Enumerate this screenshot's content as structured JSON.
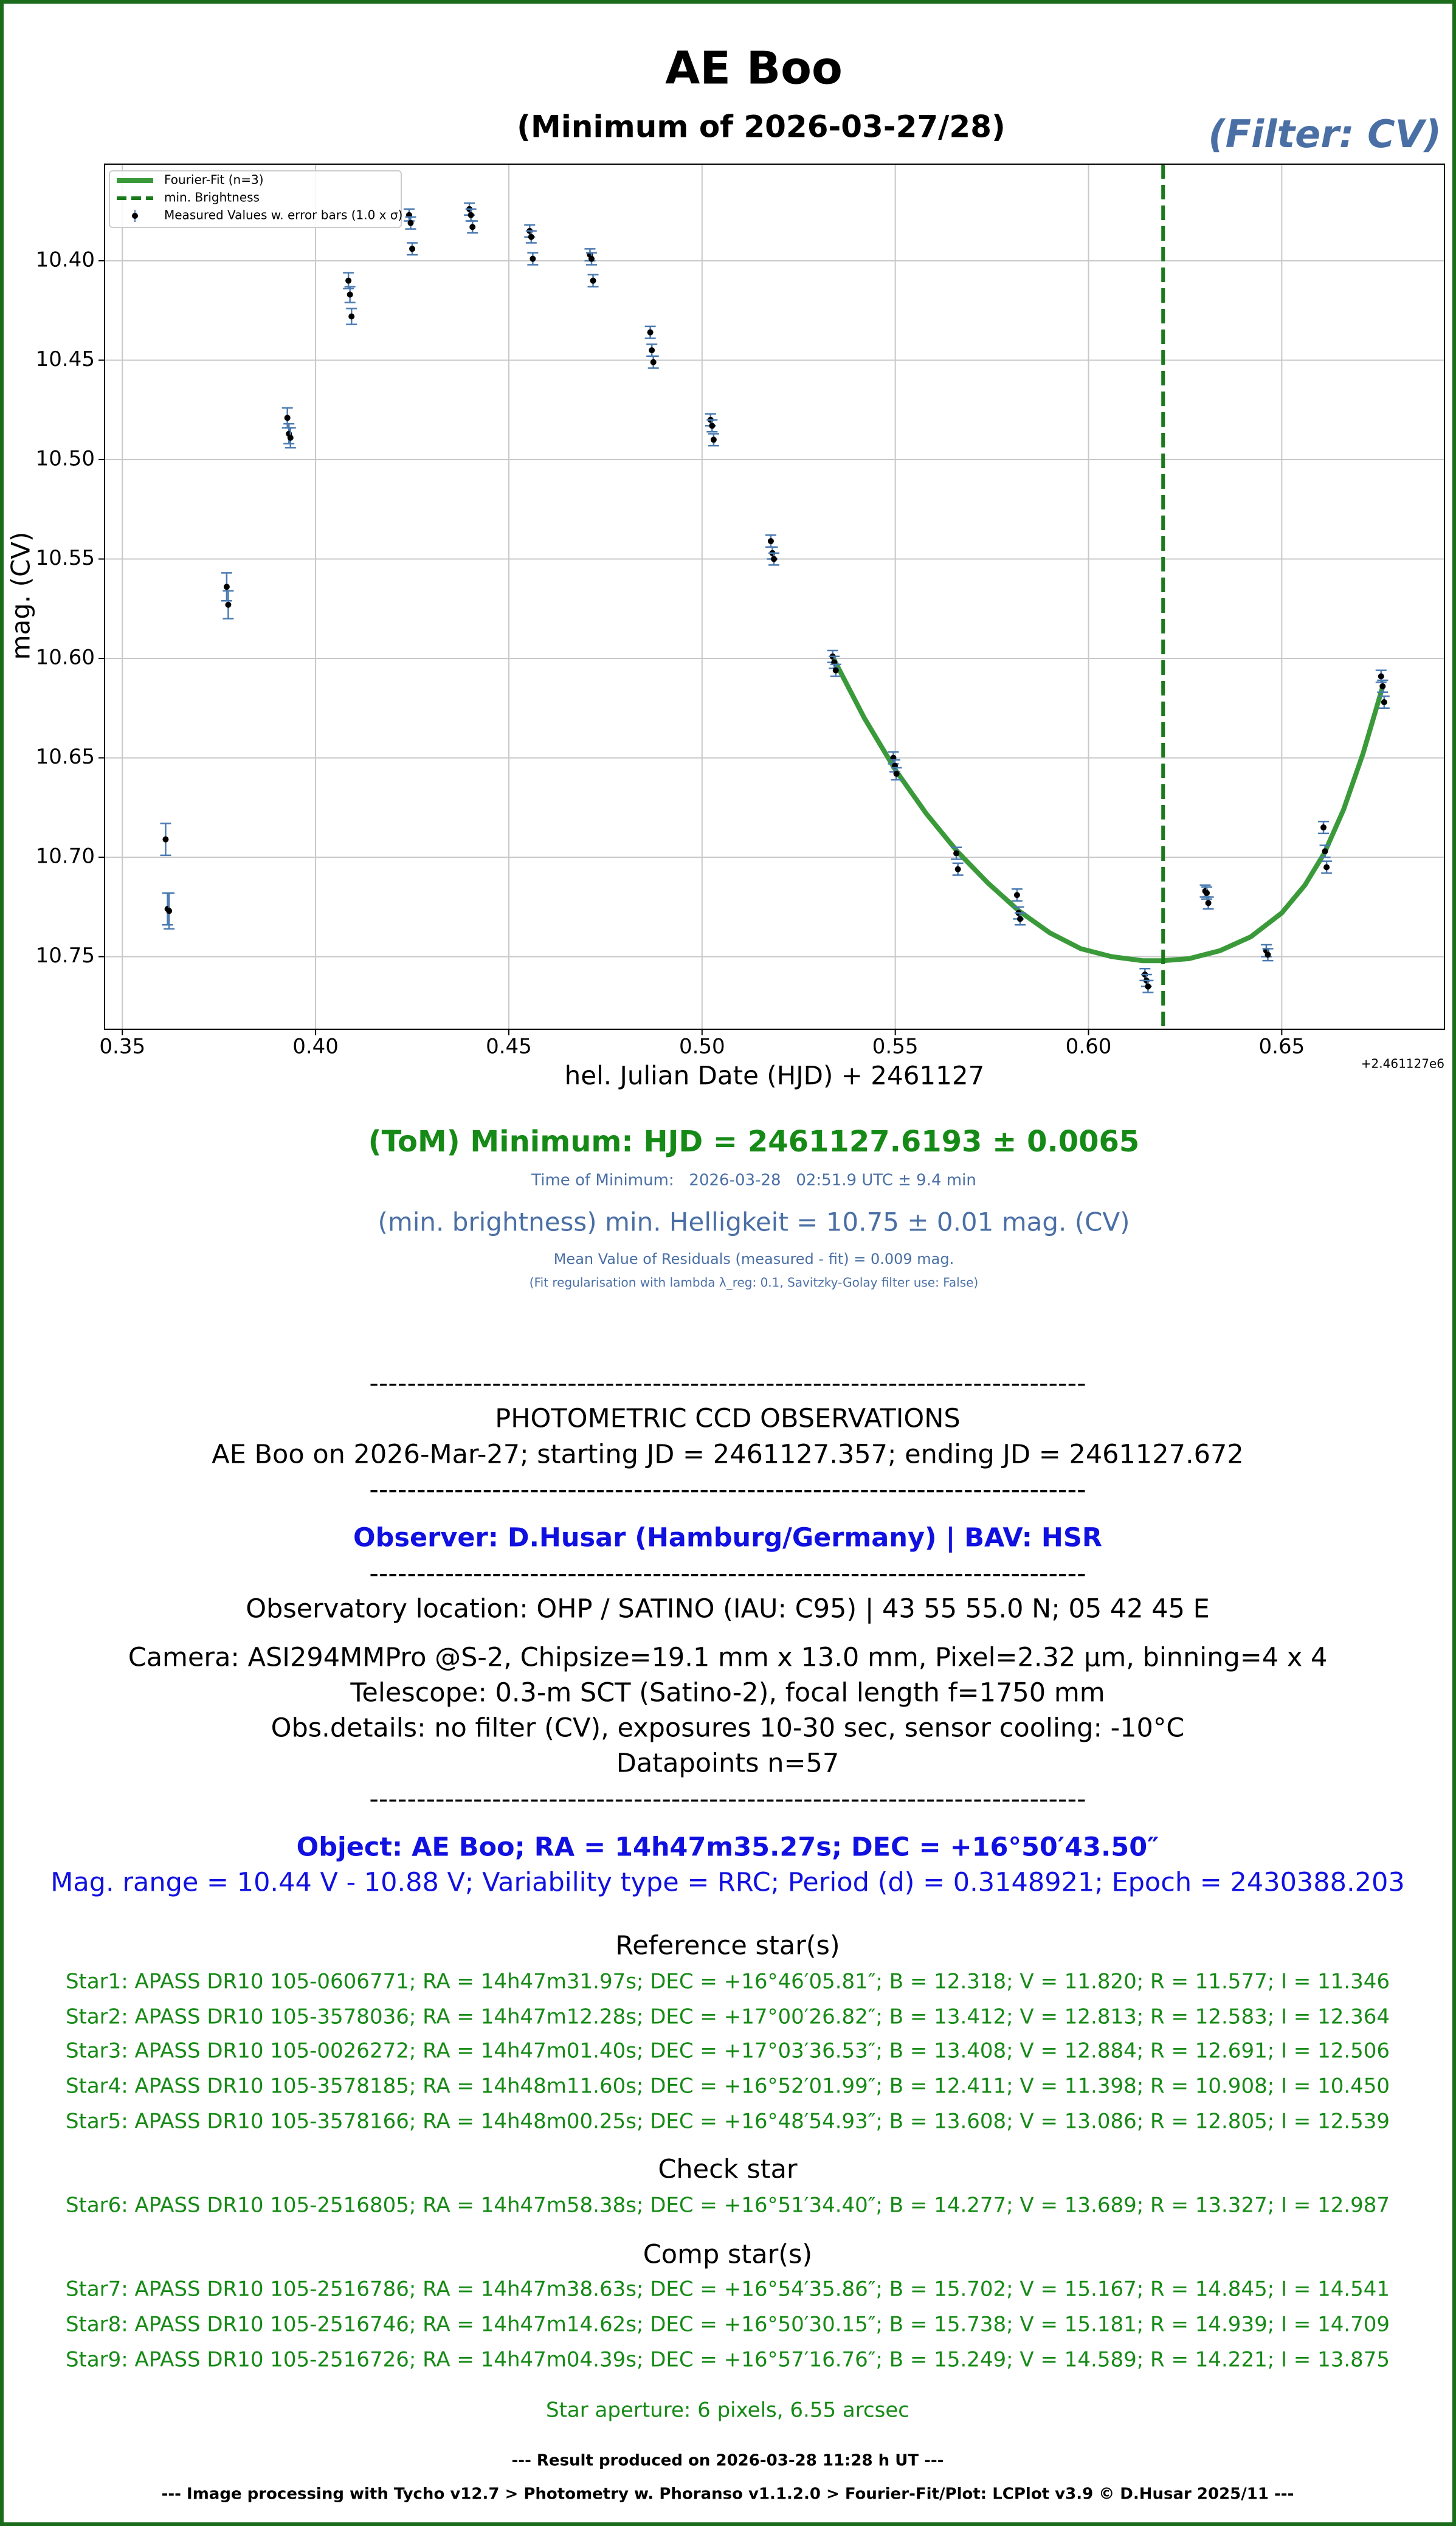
{
  "chart_data": {
    "type": "scatter",
    "title": "AE Boo",
    "subtitle": "(Minimum of 2026-03-27/28)",
    "filter_label": "(Filter: CV)",
    "xlabel": "hel. Julian Date (HJD) + 2461127",
    "ylabel": "mag. (CV)",
    "x_offset_label": "+2.461127e6",
    "xlim": [
      0.3454,
      0.6921
    ],
    "ylim": [
      10.7865,
      10.3514
    ],
    "xticks": [
      0.35,
      {
        "value": 0.4,
        "label": "0.40"
      },
      0.45,
      {
        "value": 0.5,
        "label": "0.50"
      },
      0.55,
      {
        "value": 0.6,
        "label": "0.60"
      },
      0.65
    ],
    "yticks": [
      {
        "value": 10.4,
        "label": "10.40"
      },
      10.45,
      {
        "value": 10.5,
        "label": "10.50"
      },
      10.55,
      {
        "value": 10.6,
        "label": "10.60"
      },
      10.65,
      {
        "value": 10.7,
        "label": "10.70"
      },
      10.75
    ],
    "grid": true,
    "legend": "upper left",
    "series": [
      {
        "name": "Fourier-Fit (n=3)",
        "type": "line",
        "color": "#3a9a3a",
        "x": [
          0.534,
          0.542,
          0.55,
          0.558,
          0.566,
          0.574,
          0.582,
          0.59,
          0.598,
          0.606,
          0.614,
          0.6193,
          0.626,
          0.634,
          0.642,
          0.65,
          0.656,
          0.661,
          0.666,
          0.671,
          0.676
        ],
        "values": [
          10.6,
          10.63,
          10.656,
          10.678,
          10.697,
          10.713,
          10.727,
          10.738,
          10.746,
          10.75,
          10.752,
          10.752,
          10.751,
          10.747,
          10.74,
          10.728,
          10.714,
          10.698,
          10.676,
          10.648,
          10.615
        ]
      },
      {
        "name": "Measured Values w. error bars (1.0 x σ)",
        "type": "errorbar",
        "color": "#000000",
        "error_color": "#4a7ab0",
        "x": [
          0.3612,
          0.3617,
          0.3621,
          0.377,
          0.3774,
          0.3927,
          0.3931,
          0.3935,
          0.4085,
          0.4089,
          0.4093,
          0.4242,
          0.4246,
          0.425,
          0.4398,
          0.4402,
          0.4406,
          0.4554,
          0.4558,
          0.4562,
          0.471,
          0.4714,
          0.4718,
          0.4866,
          0.487,
          0.4874,
          0.5022,
          0.5026,
          0.503,
          0.5178,
          0.5182,
          0.5186,
          0.5338,
          0.5342,
          0.5346,
          0.5495,
          0.5499,
          0.5503,
          0.5658,
          0.5662,
          0.5815,
          0.5819,
          0.5823,
          0.6146,
          0.615,
          0.6154,
          0.6302,
          0.6306,
          0.631,
          0.646,
          0.6464,
          0.6608,
          0.6612,
          0.6616,
          0.6757,
          0.6761,
          0.6765
        ],
        "values": [
          10.691,
          10.726,
          10.727,
          10.564,
          10.573,
          10.479,
          10.487,
          10.489,
          10.41,
          10.417,
          10.428,
          10.377,
          10.381,
          10.394,
          10.374,
          10.377,
          10.383,
          10.385,
          10.388,
          10.399,
          10.397,
          10.399,
          10.41,
          10.436,
          10.445,
          10.451,
          10.48,
          10.483,
          10.49,
          10.541,
          10.547,
          10.55,
          10.599,
          10.602,
          10.606,
          10.65,
          10.654,
          10.658,
          10.698,
          10.706,
          10.719,
          10.728,
          10.731,
          10.759,
          10.762,
          10.765,
          10.717,
          10.718,
          10.723,
          10.747,
          10.749,
          10.685,
          10.697,
          10.705,
          10.609,
          10.614,
          10.622
        ],
        "errors": [
          0.008,
          0.008,
          0.009,
          0.007,
          0.007,
          0.005,
          0.005,
          0.005,
          0.004,
          0.004,
          0.004,
          0.003,
          0.003,
          0.003,
          0.003,
          0.003,
          0.003,
          0.003,
          0.003,
          0.003,
          0.003,
          0.003,
          0.003,
          0.003,
          0.003,
          0.003,
          0.003,
          0.003,
          0.003,
          0.003,
          0.003,
          0.003,
          0.003,
          0.003,
          0.003,
          0.003,
          0.003,
          0.003,
          0.003,
          0.003,
          0.003,
          0.003,
          0.003,
          0.003,
          0.003,
          0.003,
          0.003,
          0.003,
          0.003,
          0.003,
          0.003,
          0.003,
          0.003,
          0.003,
          0.003,
          0.003,
          0.003
        ]
      }
    ],
    "vline": {
      "name": "min. Brightness",
      "x": 0.6193,
      "color": "#1a7a1a"
    }
  },
  "results": {
    "minimum": "(ToM) Minimum: HJD = 2461127.6193 ± 0.0065",
    "time_of_minimum": "Time of Minimum:   2026-03-28   02:51.9 UTC ± 9.4 min",
    "min_brightness": "(min. brightness) min. Helligkeit = 10.75 ± 0.01 mag. (CV)",
    "residuals": "Mean Value of Residuals (measured - fit) = 0.009 mag.",
    "fit_note": "(Fit regularisation with lambda λ_reg: 0.1, Savitzky-Golay filter use: False)"
  },
  "report": {
    "separator": "----------------------------------------------------------------------------",
    "heading": "PHOTOMETRIC CCD OBSERVATIONS",
    "run": "AE Boo on 2026-Mar-27; starting JD = 2461127.357; ending JD = 2461127.672",
    "observer": "Observer: D.Husar (Hamburg/Germany) | BAV: HSR",
    "location": "Observatory location: OHP / SATINO (IAU: C95) | 43 55 55.0 N; 05 42 45 E",
    "camera": "Camera: ASI294MMPro @S-2, Chipsize=19.1 mm x 13.0 mm, Pixel=2.32 µm, binning=4 x 4",
    "telescope": "Telescope: 0.3-m SCT (Satino-2), focal length f=1750 mm",
    "details": "Obs.details: no filter (CV), exposures 10-30 sec, sensor cooling: -10°C",
    "datapoints": "Datapoints n=57",
    "object": "Object: AE Boo; RA = 14h47m35.27s; DEC = +16°50′43.50″",
    "object_info": "Mag. range = 10.44 V - 10.88 V; Variability type = RRC; Period (d) = 0.3148921; Epoch = 2430388.203",
    "reference_heading": "Reference star(s)",
    "reference_stars": [
      "Star1: APASS DR10 105-0606771; RA = 14h47m31.97s; DEC = +16°46′05.81″; B = 12.318; V = 11.820; R = 11.577; I = 11.346",
      "Star2: APASS DR10 105-3578036; RA = 14h47m12.28s; DEC = +17°00′26.82″; B = 13.412; V = 12.813; R = 12.583; I = 12.364",
      "Star3: APASS DR10 105-0026272; RA = 14h47m01.40s; DEC = +17°03′36.53″; B = 13.408; V = 12.884; R = 12.691; I = 12.506",
      "Star4: APASS DR10 105-3578185; RA = 14h48m11.60s; DEC = +16°52′01.99″; B = 12.411; V = 11.398; R = 10.908; I = 10.450",
      "Star5: APASS DR10 105-3578166; RA = 14h48m00.25s; DEC = +16°48′54.93″; B = 13.608; V = 13.086; R = 12.805; I = 12.539"
    ],
    "check_heading": "Check star",
    "check_stars": [
      "Star6: APASS DR10 105-2516805; RA = 14h47m58.38s; DEC = +16°51′34.40″; B = 14.277; V = 13.689; R = 13.327; I = 12.987"
    ],
    "comp_heading": "Comp star(s)",
    "comp_stars": [
      "Star7: APASS DR10 105-2516786; RA = 14h47m38.63s; DEC = +16°54′35.86″; B = 15.702; V = 15.167; R = 14.845; I = 14.541",
      "Star8: APASS DR10 105-2516746; RA = 14h47m14.62s; DEC = +16°50′30.15″; B = 15.738; V = 15.181; R = 14.939; I = 14.709",
      "Star9: APASS DR10 105-2516726; RA = 14h47m04.39s; DEC = +16°57′16.76″; B = 15.249; V = 14.589; R = 14.221; I = 13.875"
    ],
    "aperture": "Star aperture: 6 pixels, 6.55 arcsec",
    "result_produced": "--- Result produced on 2026-03-28 11:28 h UT ---",
    "processing": "--- Image processing with Tycho v12.7 > Photometry w. Phoranso v1.1.2.0 > Fourier-Fit/Plot: LCPlot v3.9 © D.Husar 2025/11 ---"
  }
}
